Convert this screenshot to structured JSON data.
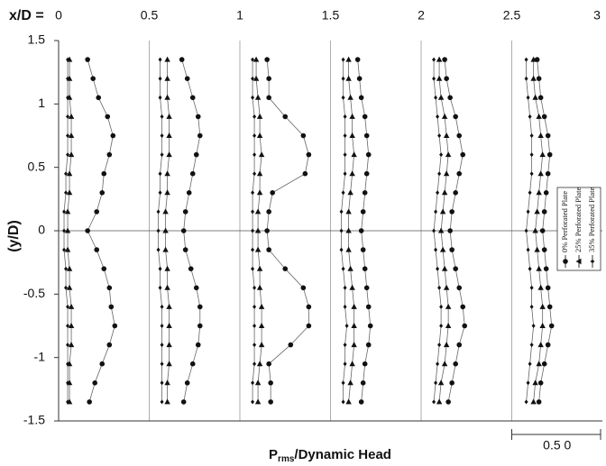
{
  "chart_data": {
    "type": "profile",
    "top_axis_label": "x/D =",
    "y_label": "(y/D)",
    "x_label": {
      "main": "P",
      "sub": "rms",
      "rest": "/Dynamic Head"
    },
    "xlim": [
      0,
      3
    ],
    "xticks": [
      0,
      0.5,
      1,
      1.5,
      2,
      2.5,
      3
    ],
    "ylim": [
      -1.5,
      1.5
    ],
    "yticks": [
      1.5,
      1,
      0.5,
      0,
      -0.5,
      -1,
      -1.5
    ],
    "stations": [
      0,
      0.5,
      1,
      1.5,
      2,
      2.5
    ],
    "y": [
      1.35,
      1.2,
      1.05,
      0.9,
      0.75,
      0.6,
      0.45,
      0.3,
      0.15,
      0,
      -0.15,
      -0.3,
      -0.45,
      -0.6,
      -0.75,
      -0.9,
      -1.05,
      -1.2,
      -1.35
    ],
    "scale_bar": {
      "length": 0.5,
      "label": "0.5 0"
    },
    "series": [
      {
        "name": "0% Perforated Plate",
        "marker": "circle",
        "color": "#111111",
        "profiles": [
          [
            0.16,
            0.19,
            0.22,
            0.27,
            0.3,
            0.28,
            0.25,
            0.24,
            0.21,
            0.16,
            0.21,
            0.25,
            0.28,
            0.29,
            0.31,
            0.28,
            0.24,
            0.2,
            0.17
          ],
          [
            0.18,
            0.21,
            0.24,
            0.27,
            0.28,
            0.26,
            0.24,
            0.22,
            0.2,
            0.19,
            0.2,
            0.23,
            0.26,
            0.28,
            0.28,
            0.27,
            0.24,
            0.21,
            0.19
          ],
          [
            0.15,
            0.16,
            0.16,
            0.25,
            0.35,
            0.38,
            0.36,
            0.18,
            0.16,
            0.15,
            0.16,
            0.25,
            0.35,
            0.38,
            0.38,
            0.28,
            0.16,
            0.17,
            0.17
          ],
          [
            0.15,
            0.16,
            0.17,
            0.19,
            0.2,
            0.21,
            0.2,
            0.19,
            0.18,
            0.17,
            0.18,
            0.19,
            0.2,
            0.21,
            0.22,
            0.21,
            0.19,
            0.18,
            0.17
          ],
          [
            0.13,
            0.14,
            0.16,
            0.19,
            0.21,
            0.23,
            0.21,
            0.19,
            0.17,
            0.16,
            0.17,
            0.19,
            0.21,
            0.23,
            0.24,
            0.21,
            0.19,
            0.17,
            0.15
          ],
          [
            0.14,
            0.15,
            0.16,
            0.18,
            0.2,
            0.21,
            0.2,
            0.19,
            0.18,
            0.17,
            0.18,
            0.19,
            0.2,
            0.21,
            0.22,
            0.2,
            0.18,
            0.16,
            0.15
          ]
        ]
      },
      {
        "name": "25% Perforated Plate",
        "marker": "triangle",
        "color": "#111111",
        "profiles": [
          [
            0.06,
            0.06,
            0.06,
            0.07,
            0.07,
            0.07,
            0.06,
            0.06,
            0.05,
            0.05,
            0.05,
            0.06,
            0.06,
            0.07,
            0.07,
            0.07,
            0.06,
            0.06,
            0.06
          ],
          [
            0.1,
            0.1,
            0.1,
            0.11,
            0.11,
            0.11,
            0.1,
            0.1,
            0.09,
            0.09,
            0.09,
            0.1,
            0.1,
            0.11,
            0.11,
            0.11,
            0.11,
            0.1,
            0.1
          ],
          [
            0.09,
            0.09,
            0.1,
            0.11,
            0.11,
            0.12,
            0.11,
            0.11,
            0.1,
            0.1,
            0.1,
            0.11,
            0.11,
            0.12,
            0.12,
            0.12,
            0.11,
            0.1,
            0.1
          ],
          [
            0.1,
            0.1,
            0.11,
            0.12,
            0.12,
            0.13,
            0.12,
            0.11,
            0.1,
            0.1,
            0.1,
            0.11,
            0.12,
            0.13,
            0.13,
            0.13,
            0.12,
            0.11,
            0.1
          ],
          [
            0.1,
            0.1,
            0.11,
            0.13,
            0.14,
            0.15,
            0.14,
            0.13,
            0.12,
            0.11,
            0.12,
            0.13,
            0.14,
            0.15,
            0.15,
            0.14,
            0.13,
            0.11,
            0.1
          ],
          [
            0.12,
            0.12,
            0.13,
            0.15,
            0.16,
            0.17,
            0.16,
            0.15,
            0.14,
            0.13,
            0.14,
            0.15,
            0.16,
            0.17,
            0.17,
            0.16,
            0.15,
            0.13,
            0.12
          ]
        ]
      },
      {
        "name": "35% Perforated Plate",
        "marker": "diamond",
        "color": "#111111",
        "profiles": [
          [
            0.05,
            0.05,
            0.05,
            0.05,
            0.05,
            0.05,
            0.04,
            0.04,
            0.03,
            0.03,
            0.03,
            0.04,
            0.04,
            0.05,
            0.05,
            0.05,
            0.05,
            0.05,
            0.05
          ],
          [
            0.06,
            0.06,
            0.06,
            0.07,
            0.07,
            0.07,
            0.06,
            0.06,
            0.05,
            0.05,
            0.05,
            0.06,
            0.06,
            0.07,
            0.07,
            0.07,
            0.07,
            0.07,
            0.07
          ],
          [
            0.07,
            0.07,
            0.07,
            0.08,
            0.08,
            0.08,
            0.08,
            0.07,
            0.07,
            0.07,
            0.07,
            0.07,
            0.08,
            0.08,
            0.08,
            0.08,
            0.08,
            0.07,
            0.07
          ],
          [
            0.07,
            0.07,
            0.07,
            0.08,
            0.08,
            0.08,
            0.08,
            0.07,
            0.06,
            0.06,
            0.06,
            0.07,
            0.08,
            0.08,
            0.09,
            0.08,
            0.08,
            0.07,
            0.07
          ],
          [
            0.07,
            0.07,
            0.08,
            0.09,
            0.1,
            0.11,
            0.1,
            0.09,
            0.08,
            0.07,
            0.08,
            0.09,
            0.1,
            0.11,
            0.11,
            0.1,
            0.09,
            0.08,
            0.07
          ],
          [
            0.08,
            0.08,
            0.09,
            0.1,
            0.11,
            0.11,
            0.11,
            0.1,
            0.09,
            0.08,
            0.09,
            0.1,
            0.11,
            0.11,
            0.12,
            0.11,
            0.1,
            0.09,
            0.08
          ]
        ]
      }
    ]
  }
}
